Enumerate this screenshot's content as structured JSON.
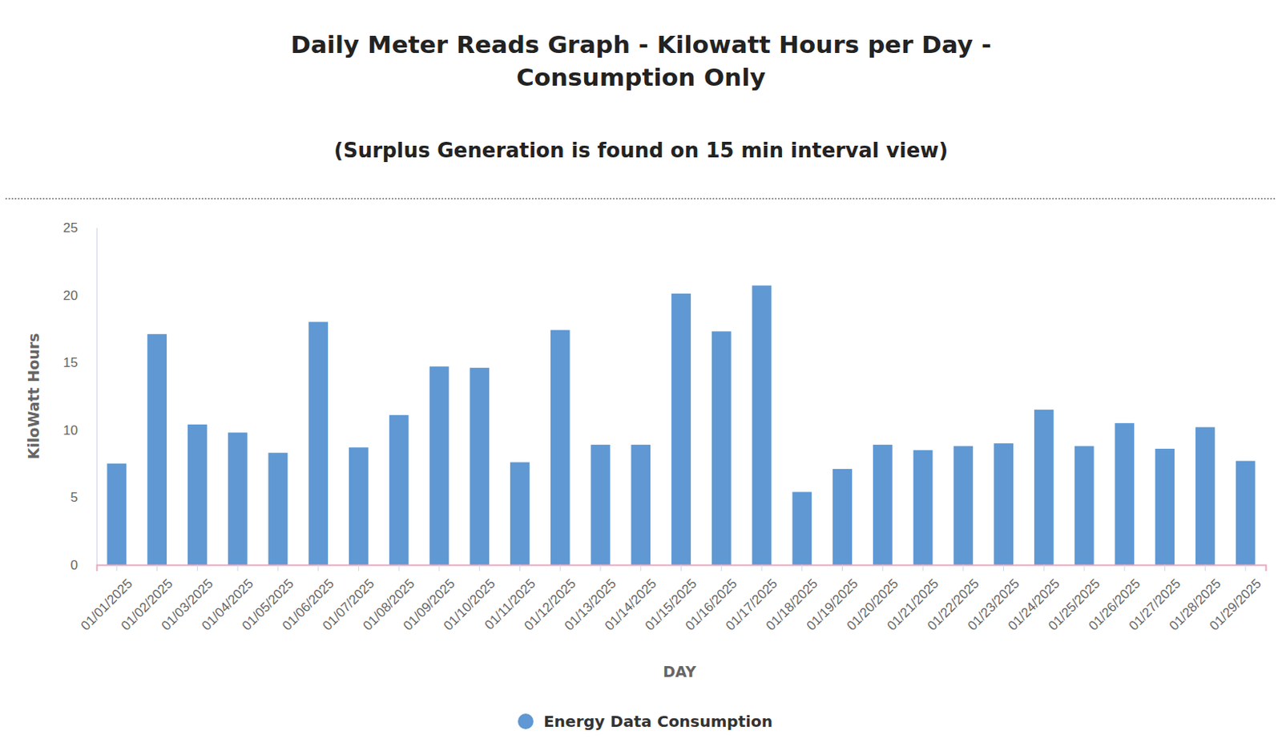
{
  "chart_data": {
    "type": "bar",
    "title": "Daily Meter Reads Graph - Kilowatt Hours per Day - Consumption Only",
    "subtitle": "(Surplus Generation is found on 15 min interval view)",
    "x_label": "DAY",
    "y_label": "KiloWatt Hours",
    "categories": [
      "01/01/2025",
      "01/02/2025",
      "01/03/2025",
      "01/04/2025",
      "01/05/2025",
      "01/06/2025",
      "01/07/2025",
      "01/08/2025",
      "01/09/2025",
      "01/10/2025",
      "01/11/2025",
      "01/12/2025",
      "01/13/2025",
      "01/14/2025",
      "01/15/2025",
      "01/16/2025",
      "01/17/2025",
      "01/18/2025",
      "01/19/2025",
      "01/20/2025",
      "01/21/2025",
      "01/22/2025",
      "01/23/2025",
      "01/24/2025",
      "01/25/2025",
      "01/26/2025",
      "01/27/2025",
      "01/28/2025",
      "01/29/2025"
    ],
    "series": [
      {
        "name": "Energy Data Consumption",
        "color": "#5f98d3",
        "values": [
          7.5,
          17.1,
          10.4,
          9.8,
          8.3,
          18.0,
          8.7,
          11.1,
          14.7,
          14.6,
          7.6,
          17.4,
          8.9,
          8.9,
          20.1,
          17.3,
          20.7,
          5.4,
          7.1,
          8.9,
          8.5,
          8.8,
          9.0,
          11.5,
          8.8,
          10.5,
          8.6,
          10.2,
          7.7
        ]
      }
    ],
    "ylim": [
      0,
      25
    ],
    "yticks": [
      0,
      5,
      10,
      15,
      20,
      25
    ],
    "grid": false,
    "legend": "bottom"
  }
}
